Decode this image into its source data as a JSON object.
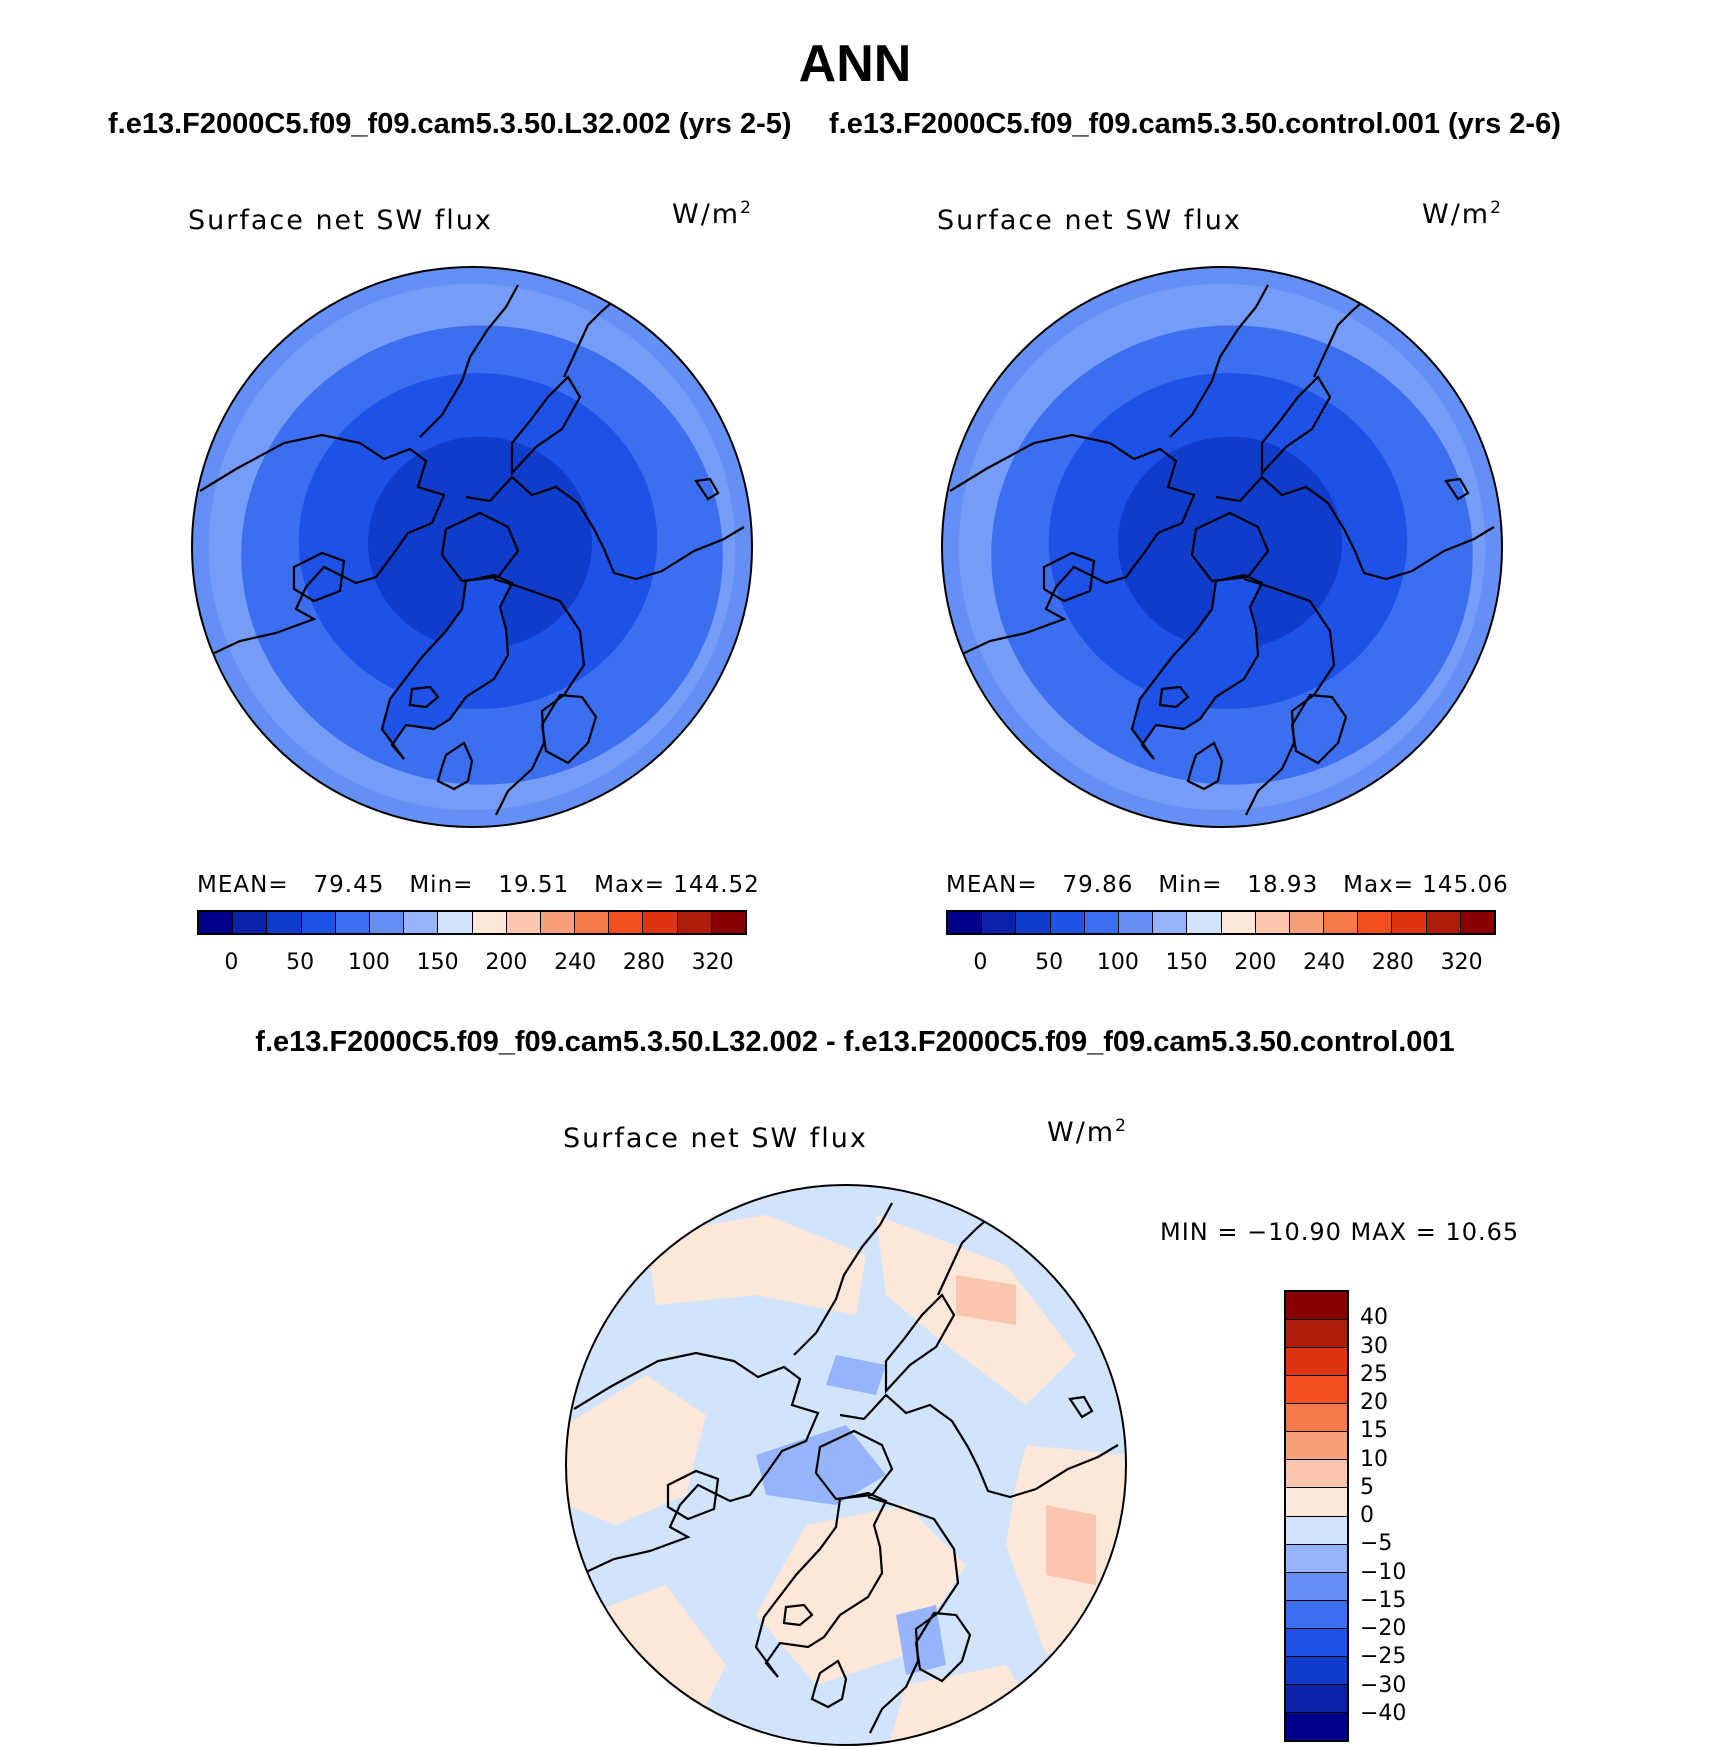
{
  "figure": {
    "title": "ANN",
    "case1": "f.e13.F2000C5.f09_f09.cam5.3.50.L32.002 (yrs 2-5)",
    "case2": "f.e13.F2000C5.f09_f09.cam5.3.50.control.001 (yrs 2-6)",
    "diff_title": "f.e13.F2000C5.f09_f09.cam5.3.50.L32.002 - f.e13.F2000C5.f09_f09.cam5.3.50.control.001"
  },
  "colors": {
    "abs_levels": [
      "#00008c",
      "#0a22a8",
      "#0f3ccb",
      "#1e52e6",
      "#3c6ff0",
      "#6490f5",
      "#96b4fa",
      "#d2e4fc",
      "#fde7d8",
      "#fbc6ad",
      "#f8a07a",
      "#f67a4c",
      "#f2501e",
      "#de3410",
      "#b01c0a",
      "#860000"
    ],
    "diff_levels": [
      "#00008c",
      "#0a22a8",
      "#0f3ccb",
      "#1e52e6",
      "#3c6ff0",
      "#6490f5",
      "#96b4fa",
      "#d2e4fc",
      "#fde7d8",
      "#fbc6ad",
      "#f8a07a",
      "#f67a4c",
      "#f2501e",
      "#de3410",
      "#b01c0a",
      "#860000"
    ],
    "coastline": "#000000"
  },
  "chart_data": [
    {
      "type": "polar-contour-map",
      "projection": "north-polar-stereographic",
      "variable": "Surface net SW flux",
      "units_base": "W/m",
      "units_sup": "2",
      "stats": {
        "mean_label": "MEAN=",
        "mean": "79.45",
        "min_label": "Min=",
        "min": "19.51",
        "max_label": "Max=",
        "max": "144.52"
      },
      "colorbar_ticks": [
        "0",
        "50",
        "100",
        "150",
        "200",
        "240",
        "280",
        "320"
      ],
      "contour_levels": [
        0,
        25,
        50,
        75,
        100,
        125,
        150,
        175,
        200,
        220,
        240,
        260,
        280,
        300,
        320
      ]
    },
    {
      "type": "polar-contour-map",
      "projection": "north-polar-stereographic",
      "variable": "Surface net SW flux",
      "units_base": "W/m",
      "units_sup": "2",
      "stats": {
        "mean_label": "MEAN=",
        "mean": "79.86",
        "min_label": "Min=",
        "min": "18.93",
        "max_label": "Max=",
        "max": "145.06"
      },
      "colorbar_ticks": [
        "0",
        "50",
        "100",
        "150",
        "200",
        "240",
        "280",
        "320"
      ],
      "contour_levels": [
        0,
        25,
        50,
        75,
        100,
        125,
        150,
        175,
        200,
        220,
        240,
        260,
        280,
        300,
        320
      ]
    },
    {
      "type": "polar-contour-map",
      "projection": "north-polar-stereographic",
      "variable": "Surface net SW flux",
      "units_base": "W/m",
      "units_sup": "2",
      "stats_text": "MIN = −10.90 MAX =   10.65",
      "colorbar_ticks": [
        "40",
        "30",
        "25",
        "20",
        "15",
        "10",
        "5",
        "0",
        "−5",
        "−10",
        "−15",
        "−20",
        "−25",
        "−30",
        "−40"
      ],
      "contour_levels": [
        -40,
        -30,
        -25,
        -20,
        -15,
        -10,
        -5,
        0,
        5,
        10,
        15,
        20,
        25,
        30,
        40
      ]
    }
  ]
}
